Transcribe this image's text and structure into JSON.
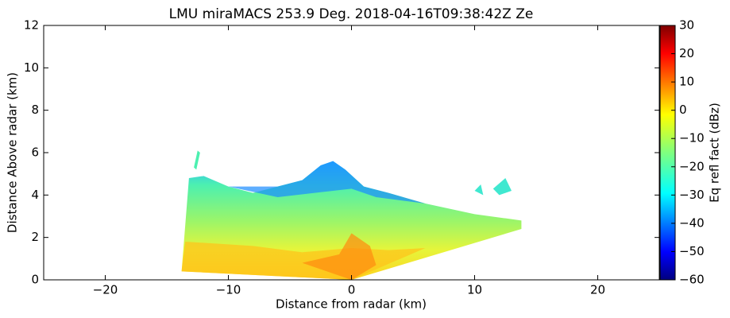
{
  "chart_data": {
    "type": "radar_rhi",
    "title": "LMU miraMACS 253.9 Deg. 2018-04-16T09:38:42Z  Ze",
    "x_label": "Distance from radar (km)",
    "y_label": "Distance Above radar  (km)",
    "xlim": [
      -25,
      25
    ],
    "ylim": [
      0,
      12
    ],
    "xticks": [
      {
        "value": -20,
        "label": "−20"
      },
      {
        "value": -10,
        "label": "−10"
      },
      0,
      10,
      20
    ],
    "yticks": [
      0,
      2,
      4,
      6,
      8,
      10,
      12
    ],
    "grid": false,
    "colorbar": {
      "label": "Eq refl fact (dBz)",
      "cmap": "jet",
      "lim": [
        -60,
        30
      ],
      "ticks": [
        {
          "value": -60,
          "label": "−60"
        },
        {
          "value": -50,
          "label": "−50"
        },
        {
          "value": -40,
          "label": "−40"
        },
        {
          "value": -30,
          "label": "−30"
        },
        {
          "value": -20,
          "label": "−20"
        },
        {
          "value": -10,
          "label": "−10"
        },
        0,
        10,
        20,
        30
      ]
    }
  }
}
